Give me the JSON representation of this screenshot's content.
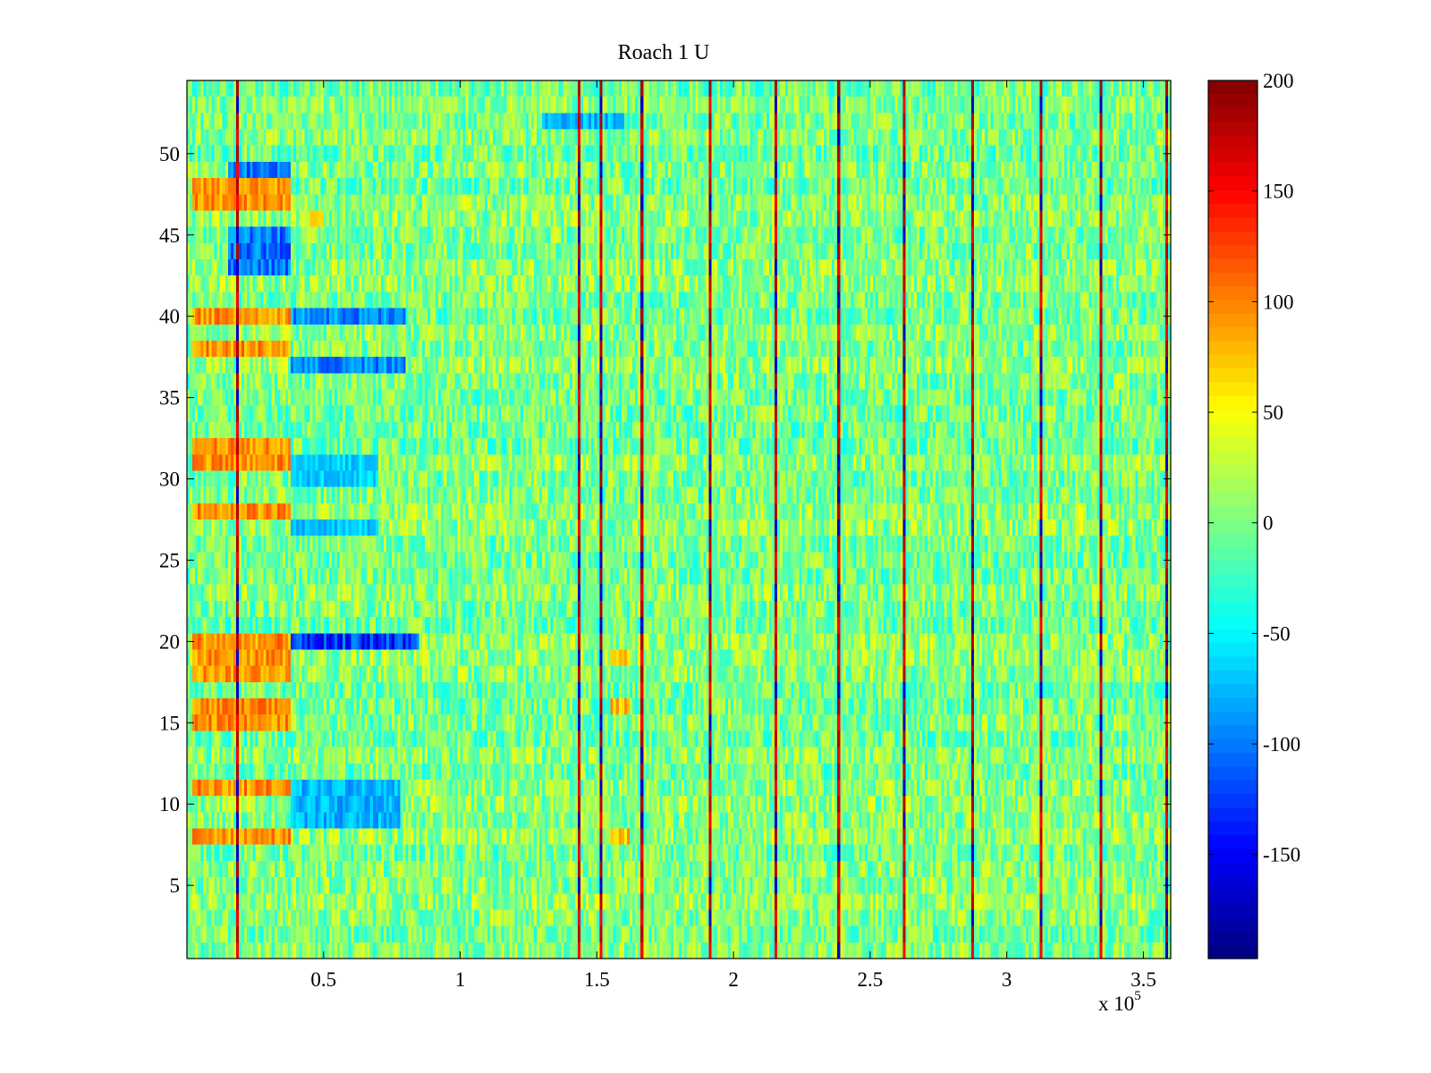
{
  "chart_data": {
    "type": "heatmap",
    "title": "Roach 1 U",
    "xlabel": "",
    "ylabel": "",
    "x_multiplier_label": {
      "base": "x 10",
      "exponent": "5"
    },
    "x_range": [
      0,
      3.6
    ],
    "x_ticks": [
      0.5,
      1,
      1.5,
      2,
      2.5,
      3,
      3.5
    ],
    "x_tick_labels": [
      "0.5",
      "1",
      "1.5",
      "2",
      "2.5",
      "3",
      "3.5"
    ],
    "y_range": [
      0.5,
      54.5
    ],
    "y_ticks": [
      5,
      10,
      15,
      20,
      25,
      30,
      35,
      40,
      45,
      50
    ],
    "y_tick_labels": [
      "5",
      "10",
      "15",
      "20",
      "25",
      "30",
      "35",
      "40",
      "45",
      "50"
    ],
    "rows": 54,
    "colormap": "jet",
    "colorbar": {
      "range": [
        -197,
        200
      ],
      "ticks": [
        200,
        150,
        100,
        50,
        0,
        -50,
        -100,
        -150
      ],
      "tick_labels": [
        "200",
        "150",
        "100",
        "50",
        "0",
        "-50",
        "-100",
        "-150"
      ]
    },
    "features": {
      "vertical_streak_x": [
        0.18,
        1.43,
        1.51,
        1.66,
        1.91,
        2.15,
        2.38,
        2.62,
        2.87,
        3.12,
        3.34,
        3.58
      ],
      "high_regions": [
        {
          "x": [
            0.02,
            0.38
          ],
          "rows": [
            15,
            16,
            18,
            19,
            20,
            40,
            38,
            31,
            32,
            28,
            8,
            11,
            47,
            48
          ],
          "value": 110
        },
        {
          "x": [
            1.55,
            1.62
          ],
          "rows": [
            8,
            16,
            19
          ],
          "value": 90
        },
        {
          "x": [
            0.45,
            0.5
          ],
          "rows": [
            46
          ],
          "value": 90
        }
      ],
      "low_regions": [
        {
          "x": [
            0.38,
            0.85
          ],
          "rows": [
            20
          ],
          "value": -150
        },
        {
          "x": [
            0.38,
            0.8
          ],
          "rows": [
            40,
            37
          ],
          "value": -110
        },
        {
          "x": [
            0.38,
            0.78
          ],
          "rows": [
            9,
            10,
            11
          ],
          "value": -90
        },
        {
          "x": [
            0.38,
            0.7
          ],
          "rows": [
            27,
            30,
            31
          ],
          "value": -80
        },
        {
          "x": [
            0.15,
            0.38
          ],
          "rows": [
            43,
            44,
            45,
            49
          ],
          "value": -120
        },
        {
          "x": [
            1.3,
            1.6
          ],
          "rows": [
            52
          ],
          "value": -90
        }
      ],
      "background_value_range": [
        -40,
        40
      ]
    }
  }
}
